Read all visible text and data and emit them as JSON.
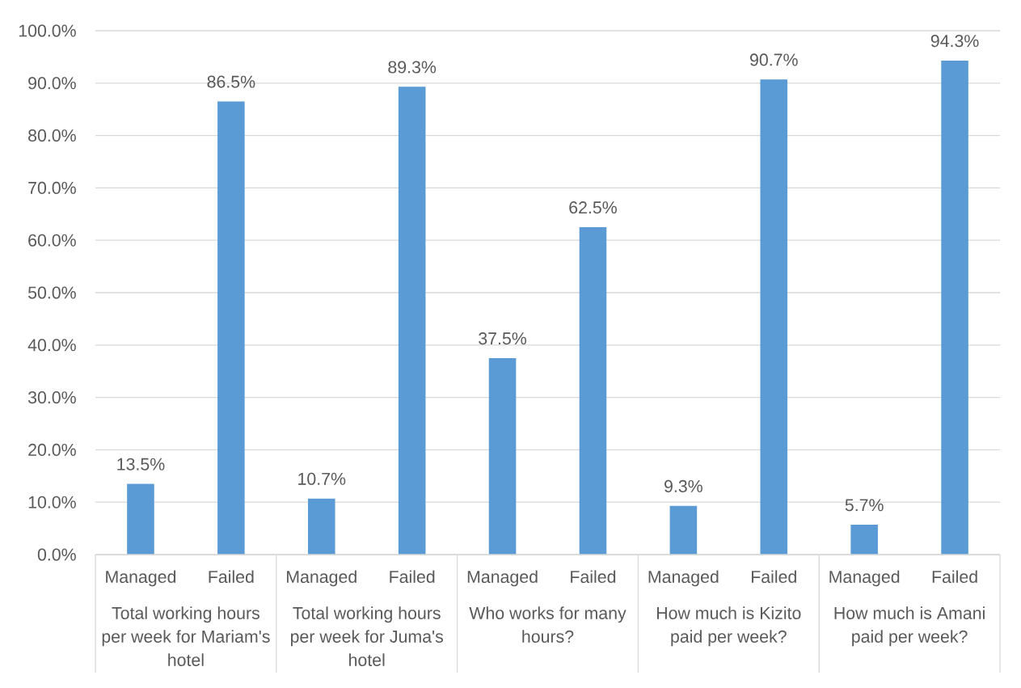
{
  "chart_data": {
    "type": "bar",
    "categories": [
      "Managed",
      "Failed",
      "Managed",
      "Failed",
      "Managed",
      "Failed",
      "Managed",
      "Failed",
      "Managed",
      "Failed"
    ],
    "values": [
      13.5,
      86.5,
      10.7,
      89.3,
      37.5,
      62.5,
      9.3,
      90.7,
      5.7,
      94.3
    ],
    "value_labels": [
      "13.5%",
      "86.5%",
      "10.7%",
      "89.3%",
      "37.5%",
      "62.5%",
      "9.3%",
      "90.7%",
      "5.7%",
      "94.3%"
    ],
    "color": "#5b9bd5",
    "ylim": [
      0,
      100
    ],
    "yticks": [
      {
        "value": 0,
        "label": "0.0%"
      },
      {
        "value": 10,
        "label": "10.0%"
      },
      {
        "value": 20,
        "label": "20.0%"
      },
      {
        "value": 30,
        "label": "30.0%"
      },
      {
        "value": 40,
        "label": "40.0%"
      },
      {
        "value": 50,
        "label": "50.0%"
      },
      {
        "value": 60,
        "label": "60.0%"
      },
      {
        "value": 70,
        "label": "70.0%"
      },
      {
        "value": 80,
        "label": "80.0%"
      },
      {
        "value": 90,
        "label": "90.0%"
      },
      {
        "value": 100,
        "label": "100.0%"
      }
    ],
    "grid": "y",
    "annotations": [
      "Total working hours per week for Mariam's hotel",
      "Total working hours per week for Juma's hotel",
      "Who works for many hours?",
      "How much is Kizito paid per week?",
      "How much is Amani paid per week?"
    ]
  }
}
